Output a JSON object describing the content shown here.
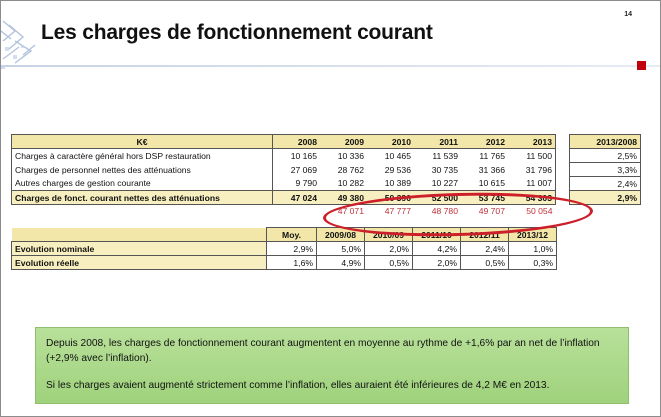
{
  "page_number": "14",
  "title": "Les charges de fonctionnement courant",
  "table": {
    "header": {
      "label": "K€",
      "years": [
        "2008",
        "2009",
        "2010",
        "2011",
        "2012",
        "2013"
      ],
      "ratio": "2013/2008"
    },
    "rows": [
      {
        "label": "Charges à caractère général hors DSP restauration",
        "values": [
          "10 165",
          "10 336",
          "10 465",
          "11 539",
          "11 765",
          "11 500"
        ],
        "ratio": "2,5%"
      },
      {
        "label": "Charges de personnel nettes des atténuations",
        "values": [
          "27 069",
          "28 762",
          "29 536",
          "30 735",
          "31 366",
          "31 796"
        ],
        "ratio": "3,3%"
      },
      {
        "label": "Autres charges de gestion courante",
        "values": [
          "9 790",
          "10 282",
          "10 389",
          "10 227",
          "10 615",
          "11 007"
        ],
        "ratio": "2,4%"
      }
    ],
    "total": {
      "label": "Charges de fonct. courant nettes des atténuations",
      "values": [
        "47 024",
        "49 380",
        "50 390",
        "52 500",
        "53 745",
        "54 303"
      ],
      "ratio": "2,9%"
    },
    "projection": [
      "47 071",
      "47 777",
      "48 780",
      "49 707",
      "50 054"
    ]
  },
  "evolution": {
    "header": {
      "moy": "Moy.",
      "periods": [
        "2009/08",
        "2010/09",
        "2011/10",
        "2012/11",
        "2013/12"
      ]
    },
    "rows": [
      {
        "label": "Evolution nominale",
        "moy": "2,9%",
        "values": [
          "5,0%",
          "2,0%",
          "4,2%",
          "2,4%",
          "1,0%"
        ]
      },
      {
        "label": "Evolution réelle",
        "moy": "1,6%",
        "values": [
          "4,9%",
          "0,5%",
          "2,0%",
          "0,5%",
          "0,3%"
        ]
      }
    ]
  },
  "note": {
    "p1": "Depuis 2008, les charges de fonctionnement courant augmentent en moyenne au rythme de +1,6% par an net de l’inflation (+2,9% avec l’inflation).",
    "p2": "Si les charges avaient augmenté strictement comme l’inflation, elles auraient été inférieures de 4,2 M€ en 2013."
  },
  "colors": {
    "accent_red": "#c0000c",
    "header_fill": "#f2e7a8",
    "note_green": "#a9d886"
  }
}
